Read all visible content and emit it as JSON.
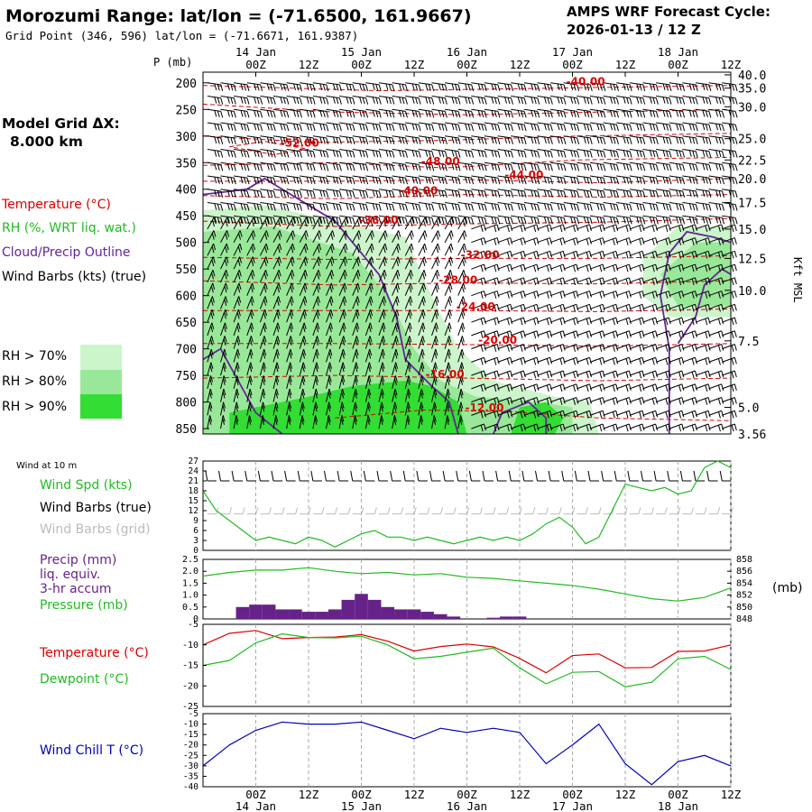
{
  "header": {
    "title": "Morozumi Range:  lat/lon = (-71.6500, 161.9667)",
    "subtitle": "Grid Point (346, 596) lat/lon = (-71.6671, 161.9387)",
    "model": "AMPS WRF Forecast Cycle:",
    "cycle": "2026-01-13 / 12  Z"
  },
  "grid": {
    "label": "Model Grid ΔX:",
    "value": "8.000 km"
  },
  "time_axis": {
    "ticks": [
      "00Z",
      "12Z",
      "00Z",
      "12Z",
      "00Z",
      "12Z",
      "00Z",
      "12Z",
      "00Z",
      "12Z"
    ],
    "tick_hours": [
      12,
      24,
      36,
      48,
      60,
      72,
      84,
      96,
      108,
      120
    ],
    "dates": [
      "14 Jan",
      "15 Jan",
      "16 Jan",
      "17 Jan",
      "18 Jan"
    ],
    "date_hours": [
      12,
      36,
      60,
      84,
      108
    ],
    "start_hour": 0,
    "end_hour": 120
  },
  "colors": {
    "temp": "#dd0000",
    "rh": "#22bb22",
    "cloud": "#662299",
    "dew": "#22bb22",
    "chill": "#0000bb",
    "precip": "#662288",
    "rh70": "#ccf5cc",
    "rh80": "#99e899",
    "rh90": "#33dd33",
    "barb_grid": "#bbbbbb"
  },
  "main_panel": {
    "p_label": "P (mb)",
    "p_ticks": [
      200,
      250,
      300,
      350,
      400,
      450,
      500,
      550,
      600,
      650,
      700,
      750,
      800,
      850
    ],
    "kft_ticks": [
      "40.0",
      "35.0",
      "30.0",
      "25.0",
      "22.5",
      "20.0",
      "17.5",
      "15.0",
      "12.5",
      "10.0",
      "7.5",
      "5.0",
      "3.56"
    ],
    "kft_pressures": [
      185,
      210,
      245,
      305,
      345,
      380,
      425,
      475,
      530,
      590,
      685,
      810,
      860
    ],
    "kft_label": "Kft MSL",
    "p_top": 180,
    "p_bottom": 860,
    "legend": {
      "temperature": "Temperature (°C)",
      "rh": "RH (%, WRT liq. wat.)",
      "cloud": "Cloud/Precip Outline",
      "barbs": "Wind Barbs (kts) (true)"
    },
    "rh_legend": [
      "RH > 70%",
      "RH > 80%",
      "RH > 90%"
    ],
    "temp_labels": [
      {
        "text": "-40.00",
        "hour": 87,
        "p": 205
      },
      {
        "text": "-52.00",
        "hour": 22,
        "p": 320
      },
      {
        "text": "-48.00",
        "hour": 54,
        "p": 355
      },
      {
        "text": "-44.00",
        "hour": 73,
        "p": 380
      },
      {
        "text": "-40.00",
        "hour": 49,
        "p": 410
      },
      {
        "text": "-36.00",
        "hour": 40,
        "p": 465
      },
      {
        "text": "-32.00",
        "hour": 63,
        "p": 530
      },
      {
        "text": "-28.00",
        "hour": 58,
        "p": 578
      },
      {
        "text": "-24.00",
        "hour": 62,
        "p": 628
      },
      {
        "text": "-20.00",
        "hour": 67,
        "p": 690
      },
      {
        "text": "-16.00",
        "hour": 55,
        "p": 755
      },
      {
        "text": "-12.00",
        "hour": 64,
        "p": 818
      }
    ],
    "isotherms": [
      {
        "label": "-40",
        "pts": [
          [
            0,
            205
          ],
          [
            40,
            215
          ],
          [
            80,
            210
          ],
          [
            120,
            205
          ]
        ]
      },
      {
        "label": "-44",
        "pts": [
          [
            0,
            240
          ],
          [
            30,
            255
          ],
          [
            60,
            260
          ],
          [
            90,
            255
          ],
          [
            120,
            250
          ]
        ]
      },
      {
        "label": "-48",
        "pts": [
          [
            0,
            300
          ],
          [
            25,
            312
          ],
          [
            55,
            308
          ],
          [
            85,
            300
          ],
          [
            120,
            295
          ]
        ]
      },
      {
        "label": "-52",
        "pts": [
          [
            6,
            320
          ],
          [
            14,
            310
          ],
          [
            24,
            325
          ],
          [
            16,
            335
          ],
          [
            6,
            320
          ]
        ]
      },
      {
        "label": "-48b",
        "pts": [
          [
            0,
            355
          ],
          [
            30,
            350
          ],
          [
            55,
            360
          ],
          [
            85,
            345
          ],
          [
            120,
            340
          ]
        ]
      },
      {
        "label": "-44b",
        "pts": [
          [
            0,
            385
          ],
          [
            30,
            385
          ],
          [
            60,
            382
          ],
          [
            90,
            388
          ],
          [
            120,
            380
          ]
        ]
      },
      {
        "label": "-40b",
        "pts": [
          [
            0,
            412
          ],
          [
            30,
            418
          ],
          [
            60,
            410
          ],
          [
            90,
            415
          ],
          [
            120,
            410
          ]
        ]
      },
      {
        "label": "-36",
        "pts": [
          [
            0,
            460
          ],
          [
            30,
            470
          ],
          [
            60,
            465
          ],
          [
            90,
            462
          ],
          [
            120,
            455
          ]
        ]
      },
      {
        "label": "-32",
        "pts": [
          [
            0,
            528
          ],
          [
            30,
            532
          ],
          [
            60,
            530
          ],
          [
            90,
            530
          ],
          [
            120,
            525
          ]
        ]
      },
      {
        "label": "-28",
        "pts": [
          [
            0,
            572
          ],
          [
            30,
            580
          ],
          [
            60,
            576
          ],
          [
            90,
            578
          ],
          [
            120,
            572
          ]
        ]
      },
      {
        "label": "-24",
        "pts": [
          [
            0,
            628
          ],
          [
            30,
            628
          ],
          [
            60,
            628
          ],
          [
            90,
            630
          ],
          [
            120,
            625
          ]
        ]
      },
      {
        "label": "-20",
        "pts": [
          [
            0,
            690
          ],
          [
            30,
            690
          ],
          [
            60,
            692
          ],
          [
            90,
            695
          ],
          [
            120,
            690
          ]
        ]
      },
      {
        "label": "-16",
        "pts": [
          [
            0,
            755
          ],
          [
            30,
            750
          ],
          [
            60,
            755
          ],
          [
            90,
            760
          ],
          [
            120,
            755
          ]
        ]
      },
      {
        "label": "-12",
        "pts": [
          [
            30,
            830
          ],
          [
            50,
            815
          ],
          [
            70,
            818
          ],
          [
            90,
            830
          ],
          [
            120,
            835
          ]
        ]
      }
    ],
    "rh_regions": [
      {
        "level": 70,
        "pts": [
          [
            0,
            440
          ],
          [
            14,
            430
          ],
          [
            30,
            460
          ],
          [
            46,
            490
          ],
          [
            52,
            600
          ],
          [
            58,
            700
          ],
          [
            66,
            760
          ],
          [
            80,
            790
          ],
          [
            88,
            800
          ],
          [
            90,
            860
          ],
          [
            0,
            860
          ]
        ]
      },
      {
        "level": 70,
        "pts": [
          [
            100,
            530
          ],
          [
            108,
            470
          ],
          [
            120,
            470
          ],
          [
            120,
            640
          ],
          [
            106,
            640
          ],
          [
            100,
            600
          ]
        ]
      },
      {
        "level": 80,
        "pts": [
          [
            0,
            480
          ],
          [
            16,
            470
          ],
          [
            34,
            520
          ],
          [
            42,
            600
          ],
          [
            48,
            700
          ],
          [
            54,
            760
          ],
          [
            62,
            790
          ],
          [
            76,
            800
          ],
          [
            84,
            810
          ],
          [
            84,
            860
          ],
          [
            0,
            860
          ]
        ]
      },
      {
        "level": 80,
        "pts": [
          [
            104,
            560
          ],
          [
            112,
            500
          ],
          [
            120,
            500
          ],
          [
            120,
            620
          ],
          [
            108,
            620
          ]
        ]
      },
      {
        "level": 90,
        "pts": [
          [
            6,
            860
          ],
          [
            6,
            820
          ],
          [
            24,
            790
          ],
          [
            34,
            770
          ],
          [
            46,
            760
          ],
          [
            52,
            770
          ],
          [
            58,
            800
          ],
          [
            60,
            860
          ]
        ]
      },
      {
        "level": 90,
        "pts": [
          [
            70,
            860
          ],
          [
            72,
            810
          ],
          [
            78,
            800
          ],
          [
            82,
            830
          ],
          [
            80,
            860
          ]
        ]
      }
    ],
    "cloud_outlines": [
      {
        "pts": [
          [
            0,
            410
          ],
          [
            10,
            400
          ],
          [
            14,
            380
          ],
          [
            20,
            410
          ],
          [
            30,
            460
          ],
          [
            40,
            560
          ],
          [
            44,
            640
          ],
          [
            46,
            720
          ],
          [
            52,
            770
          ],
          [
            56,
            800
          ],
          [
            58,
            860
          ]
        ]
      },
      {
        "pts": [
          [
            0,
            720
          ],
          [
            4,
            700
          ],
          [
            8,
            760
          ],
          [
            12,
            820
          ],
          [
            18,
            860
          ]
        ]
      },
      {
        "pts": [
          [
            66,
            860
          ],
          [
            68,
            820
          ],
          [
            74,
            800
          ],
          [
            78,
            830
          ],
          [
            78,
            860
          ]
        ]
      },
      {
        "pts": [
          [
            106,
            860
          ],
          [
            106,
            700
          ],
          [
            104,
            600
          ],
          [
            106,
            520
          ],
          [
            110,
            480
          ],
          [
            116,
            490
          ],
          [
            120,
            500
          ]
        ]
      },
      {
        "pts": [
          [
            108,
            690
          ],
          [
            112,
            640
          ],
          [
            114,
            580
          ],
          [
            118,
            550
          ],
          [
            120,
            560
          ]
        ]
      }
    ]
  },
  "wind10m": {
    "title": "Wind at 10 m",
    "legend_spd": "Wind Spd (kts)",
    "legend_barb": "Wind Barbs (true)",
    "legend_grid": "Wind Barbs (grid)",
    "ylim": [
      0,
      27
    ],
    "yticks": [
      0,
      3,
      6,
      9,
      12,
      15,
      18,
      21,
      24,
      27
    ],
    "hours": [
      0,
      3,
      6,
      9,
      12,
      15,
      18,
      21,
      24,
      27,
      30,
      33,
      36,
      39,
      42,
      45,
      48,
      51,
      54,
      57,
      60,
      63,
      66,
      69,
      72,
      75,
      78,
      81,
      84,
      87,
      90,
      93,
      96,
      99,
      102,
      105,
      108,
      111,
      114,
      117,
      120
    ],
    "speed": [
      18,
      12,
      9,
      6,
      3,
      4,
      3,
      2,
      4,
      3,
      1,
      3,
      5,
      6,
      4,
      4,
      3,
      4,
      3,
      2,
      3,
      4,
      3,
      4,
      3,
      5,
      8,
      10,
      7,
      2,
      4,
      12,
      20,
      19,
      18,
      19,
      17,
      18,
      25,
      27,
      25
    ]
  },
  "precip_panel": {
    "legend_precip": "Precip (mm)",
    "legend_liq": "liq. equiv.",
    "legend_accum": "3-hr accum",
    "legend_pressure": "Pressure (mb)",
    "unit": "(mb)",
    "precip_ylim": [
      0,
      2.5
    ],
    "precip_yticks": [
      "0",
      "0.5",
      "1.0",
      "1.5",
      "2.0",
      "2.5"
    ],
    "pressure_ylim": [
      848,
      858
    ],
    "pressure_yticks": [
      "858",
      "856",
      "854",
      "852",
      "850",
      "848"
    ],
    "precip_hours": [
      9,
      12,
      15,
      18,
      21,
      24,
      27,
      30,
      33,
      36,
      39,
      42,
      45,
      48,
      51,
      54,
      57,
      60,
      63,
      66,
      69,
      72,
      75
    ],
    "precip_values": [
      0.5,
      0.6,
      0.6,
      0.4,
      0.4,
      0.3,
      0.3,
      0.4,
      0.8,
      1.05,
      0.8,
      0.5,
      0.4,
      0.4,
      0.3,
      0.2,
      0.1,
      0,
      0,
      0.05,
      0.1,
      0.1,
      0
    ],
    "pressure_hours": [
      0,
      6,
      12,
      18,
      24,
      30,
      36,
      42,
      48,
      54,
      60,
      66,
      72,
      78,
      84,
      90,
      96,
      102,
      108,
      114,
      120
    ],
    "pressure_values": [
      855.2,
      855.8,
      856.2,
      856.2,
      856.6,
      856.0,
      855.6,
      855.8,
      855.4,
      855.6,
      855.0,
      854.8,
      854.4,
      854.0,
      853.6,
      853.0,
      852.2,
      851.4,
      851.0,
      851.6,
      853.2
    ]
  },
  "temp_panel": {
    "legend_temp": "Temperature (°C)",
    "legend_dew": "Dewpoint (°C)",
    "ylim": [
      -25,
      -5
    ],
    "yticks": [
      "-5",
      "-10",
      "-15",
      "-20",
      "-25"
    ],
    "hours": [
      0,
      6,
      12,
      18,
      24,
      30,
      36,
      42,
      48,
      54,
      60,
      66,
      72,
      78,
      84,
      90,
      96,
      102,
      108,
      114,
      120
    ],
    "temp": [
      -10,
      -7.2,
      -6.5,
      -8.5,
      -8.2,
      -8.1,
      -7.5,
      -9.1,
      -11.5,
      -10.4,
      -9.8,
      -10.5,
      -13.3,
      -16.8,
      -12.6,
      -12.2,
      -15.6,
      -15.5,
      -11.6,
      -11.5,
      -10.0
    ],
    "dew": [
      -15,
      -13.8,
      -9.5,
      -7.3,
      -8.2,
      -8.3,
      -7.9,
      -10.0,
      -13.4,
      -12.8,
      -11.8,
      -10.8,
      -15.6,
      -19.5,
      -16.7,
      -16.5,
      -20.2,
      -19.1,
      -13.4,
      -12.8,
      -16.0
    ]
  },
  "chill_panel": {
    "legend": "Wind Chill T (°C)",
    "ylim": [
      -40,
      -5
    ],
    "yticks": [
      "-5",
      "-10",
      "-15",
      "-20",
      "-25",
      "-30",
      "-35",
      "-40"
    ],
    "hours": [
      0,
      6,
      12,
      18,
      24,
      30,
      36,
      42,
      48,
      54,
      60,
      66,
      72,
      78,
      84,
      90,
      96,
      102,
      108,
      114,
      120
    ],
    "chill": [
      -30,
      -20,
      -13,
      -9,
      -10,
      -10,
      -9,
      -13,
      -17,
      -12,
      -14,
      -12,
      -14,
      -29,
      -20,
      -10,
      -29,
      -39,
      -28,
      -25,
      -30
    ]
  }
}
